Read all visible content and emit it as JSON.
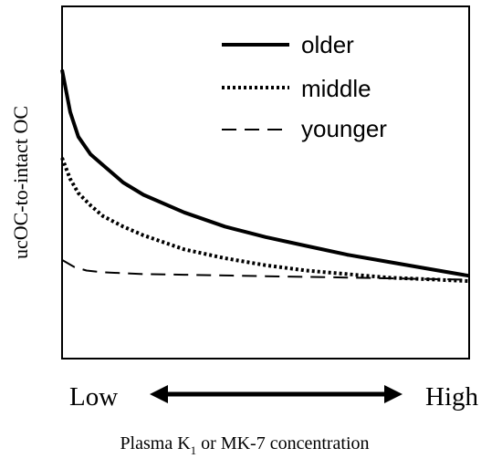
{
  "chart_data": {
    "type": "line",
    "title": "",
    "xlabel": {
      "prefix": "Plasma K",
      "subscript": "1",
      "suffix": " or MK-7 concentration"
    },
    "ylabel": "ucOC-to-intact OC",
    "x_axis_low_label": "Low",
    "x_axis_high_label": "High",
    "legend_position": "top-right",
    "grid": false,
    "xlim": [
      0,
      100
    ],
    "ylim": [
      0,
      100
    ],
    "series": [
      {
        "name": "older",
        "style": "solid",
        "x": [
          0,
          2,
          4,
          7,
          10,
          15,
          20,
          30,
          40,
          50,
          60,
          70,
          80,
          90,
          100
        ],
        "y": [
          82,
          70,
          63,
          58,
          55,
          50,
          46.5,
          41.5,
          37.5,
          34.5,
          32,
          29.5,
          27.5,
          25.5,
          23.5
        ]
      },
      {
        "name": "middle",
        "style": "dotted",
        "x": [
          0,
          2,
          4,
          7,
          10,
          15,
          20,
          30,
          40,
          50,
          60,
          70,
          80,
          90,
          100
        ],
        "y": [
          57,
          51,
          47,
          43.5,
          40.5,
          37.5,
          35,
          31,
          28.5,
          26.5,
          25,
          24,
          23,
          22.5,
          22
        ]
      },
      {
        "name": "younger",
        "style": "dashed",
        "x": [
          0,
          3,
          6,
          10,
          20,
          30,
          40,
          50,
          60,
          70,
          80,
          90,
          100
        ],
        "y": [
          28,
          26,
          25,
          24.5,
          24,
          23.8,
          23.6,
          23.4,
          23.2,
          23,
          22.8,
          22.6,
          22.4
        ]
      }
    ]
  }
}
